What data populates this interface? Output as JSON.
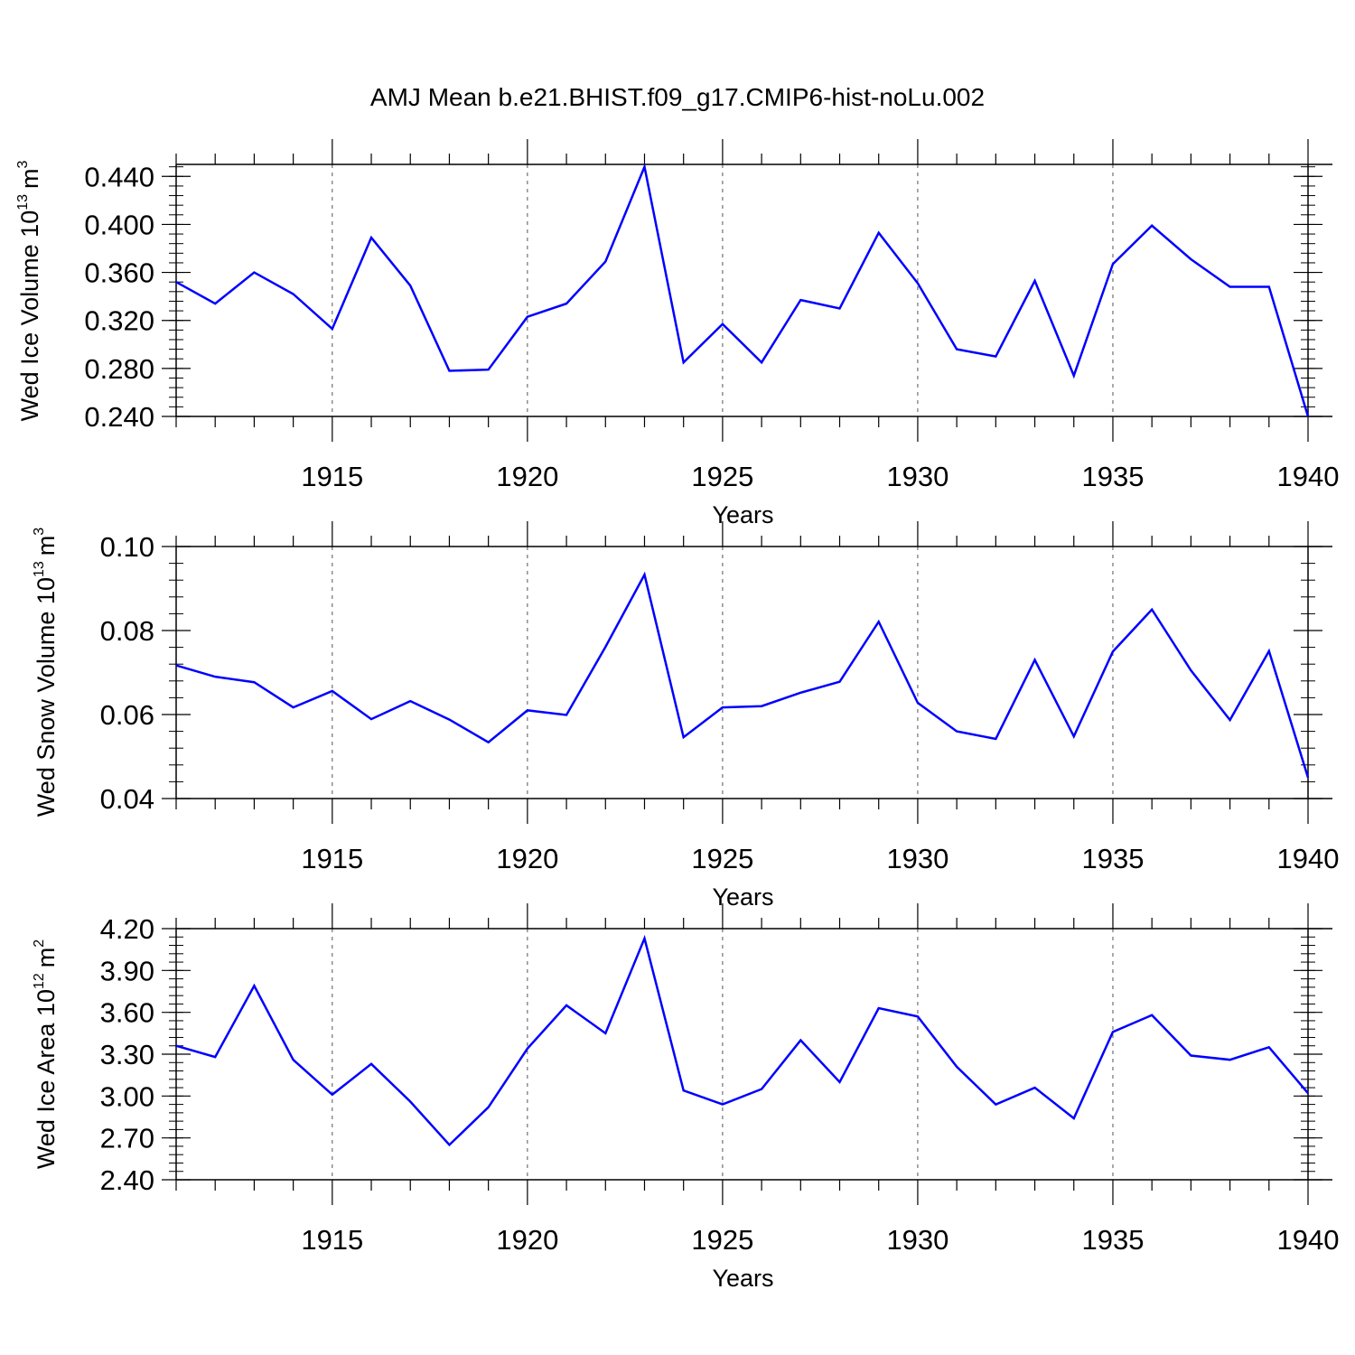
{
  "title": "AMJ Mean b.e21.BHIST.f09_g17.CMIP6-hist-noLu.002",
  "colors": {
    "line": "#0000ff",
    "axis": "#000000",
    "grid": "#555555"
  },
  "chart_data": [
    {
      "type": "line",
      "xlabel": "Years",
      "ylabel_main": "Wed Ice Volume 10",
      "ylabel_exp": "13",
      "ylabel_unit": "m",
      "ylabel_unit_exp": "3",
      "xlim": [
        1911,
        1940
      ],
      "ylim": [
        0.24,
        0.45
      ],
      "yticks": [
        "0.240",
        "0.280",
        "0.320",
        "0.360",
        "0.400",
        "0.440"
      ],
      "xticks": [
        "1915",
        "1920",
        "1925",
        "1930",
        "1935",
        "1940"
      ],
      "x": [
        1911,
        1912,
        1913,
        1914,
        1915,
        1916,
        1917,
        1918,
        1919,
        1920,
        1921,
        1922,
        1923,
        1924,
        1925,
        1926,
        1927,
        1928,
        1929,
        1930,
        1931,
        1932,
        1933,
        1934,
        1935,
        1936,
        1937,
        1938,
        1939,
        1940
      ],
      "series": [
        {
          "values": [
            0.352,
            0.334,
            0.36,
            0.342,
            0.313,
            0.389,
            0.349,
            0.278,
            0.279,
            0.323,
            0.334,
            0.369,
            0.448,
            0.285,
            0.317,
            0.285,
            0.337,
            0.33,
            0.393,
            0.351,
            0.296,
            0.29,
            0.353,
            0.274,
            0.367,
            0.399,
            0.371,
            0.348,
            0.348,
            0.24
          ]
        }
      ]
    },
    {
      "type": "line",
      "xlabel": "Years",
      "ylabel_main": "Wed Snow Volume 10",
      "ylabel_exp": "13",
      "ylabel_unit": "m",
      "ylabel_unit_exp": "3",
      "xlim": [
        1911,
        1940
      ],
      "ylim": [
        0.04,
        0.1
      ],
      "yticks": [
        "0.04",
        "0.06",
        "0.08",
        "0.10"
      ],
      "xticks": [
        "1915",
        "1920",
        "1925",
        "1930",
        "1935",
        "1940"
      ],
      "x": [
        1911,
        1912,
        1913,
        1914,
        1915,
        1916,
        1917,
        1918,
        1919,
        1920,
        1921,
        1922,
        1923,
        1924,
        1925,
        1926,
        1927,
        1928,
        1929,
        1930,
        1931,
        1932,
        1933,
        1934,
        1935,
        1936,
        1937,
        1938,
        1939,
        1940
      ],
      "series": [
        {
          "values": [
            0.0717,
            0.069,
            0.0677,
            0.0617,
            0.0656,
            0.0589,
            0.0632,
            0.0588,
            0.0534,
            0.061,
            0.0599,
            0.0761,
            0.0933,
            0.0546,
            0.0617,
            0.062,
            0.0652,
            0.0678,
            0.0821,
            0.0628,
            0.056,
            0.0542,
            0.073,
            0.0548,
            0.075,
            0.085,
            0.0705,
            0.0587,
            0.0751,
            0.045
          ]
        }
      ]
    },
    {
      "type": "line",
      "xlabel": "Years",
      "ylabel_main": "Wed Ice Area 10",
      "ylabel_exp": "12",
      "ylabel_unit": "m",
      "ylabel_unit_exp": "2",
      "xlim": [
        1911,
        1940
      ],
      "ylim": [
        2.4,
        4.2
      ],
      "yticks": [
        "2.40",
        "2.70",
        "3.00",
        "3.30",
        "3.60",
        "3.90",
        "4.20"
      ],
      "xticks": [
        "1915",
        "1920",
        "1925",
        "1930",
        "1935",
        "1940"
      ],
      "x": [
        1911,
        1912,
        1913,
        1914,
        1915,
        1916,
        1917,
        1918,
        1919,
        1920,
        1921,
        1922,
        1923,
        1924,
        1925,
        1926,
        1927,
        1928,
        1929,
        1930,
        1931,
        1932,
        1933,
        1934,
        1935,
        1936,
        1937,
        1938,
        1939,
        1940
      ],
      "series": [
        {
          "values": [
            3.36,
            3.28,
            3.79,
            3.26,
            3.01,
            3.23,
            2.96,
            2.65,
            2.92,
            3.34,
            3.65,
            3.45,
            4.13,
            3.04,
            2.94,
            3.05,
            3.4,
            3.1,
            3.63,
            3.57,
            3.21,
            2.94,
            3.06,
            2.84,
            3.46,
            3.58,
            3.29,
            3.26,
            3.35,
            3.02
          ]
        }
      ]
    }
  ]
}
